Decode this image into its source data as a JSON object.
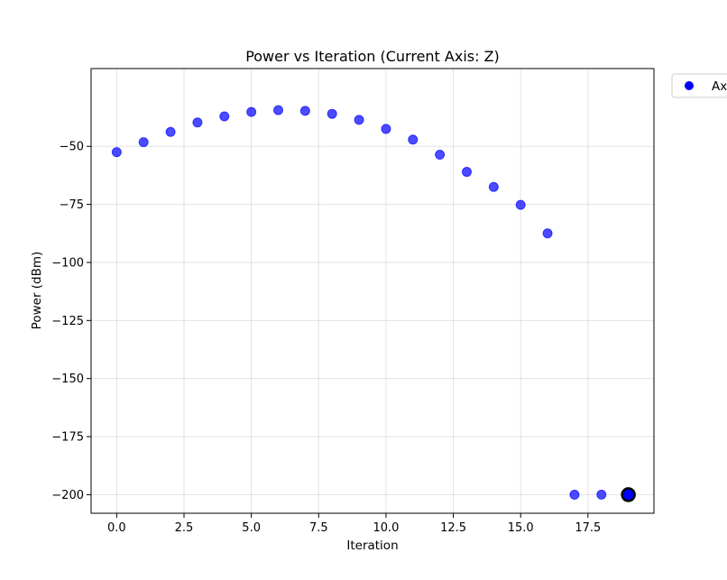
{
  "chart_data": {
    "type": "scatter",
    "title": "Power vs Iteration (Current Axis: Z)",
    "xlabel": "Iteration",
    "ylabel": "Power (dBm)",
    "xlim": [
      -0.95,
      19.95
    ],
    "ylim": [
      -208,
      -16.5
    ],
    "xticks": [
      0,
      2.5,
      5,
      7.5,
      10,
      12.5,
      15,
      17.5
    ],
    "xtick_labels": [
      "0.0",
      "2.5",
      "5.0",
      "7.5",
      "10.0",
      "12.5",
      "15.0",
      "17.5"
    ],
    "yticks": [
      -200,
      -175,
      -150,
      -125,
      -100,
      -75,
      -50
    ],
    "ytick_labels": [
      "−200",
      "−175",
      "−150",
      "−125",
      "−100",
      "−75",
      "−50"
    ],
    "grid": true,
    "legend": {
      "placement": "outside-top-right",
      "entries": [
        "Ax"
      ]
    },
    "series": [
      {
        "name": "Ax",
        "color": "#0000ff",
        "x": [
          0,
          1,
          2,
          3,
          4,
          5,
          6,
          7,
          8,
          9,
          10,
          11,
          12,
          13,
          14,
          15,
          16,
          17,
          18,
          19
        ],
        "y": [
          -52.5,
          -48.2,
          -43.8,
          -39.7,
          -37.1,
          -35.2,
          -34.4,
          -34.7,
          -36.0,
          -38.6,
          -42.5,
          -47.1,
          -53.6,
          -61.0,
          -67.5,
          -75.2,
          -87.5,
          -200,
          -200,
          -200
        ]
      }
    ],
    "highlight": {
      "x": 19,
      "y": -200,
      "edge_color": "#000000"
    }
  }
}
